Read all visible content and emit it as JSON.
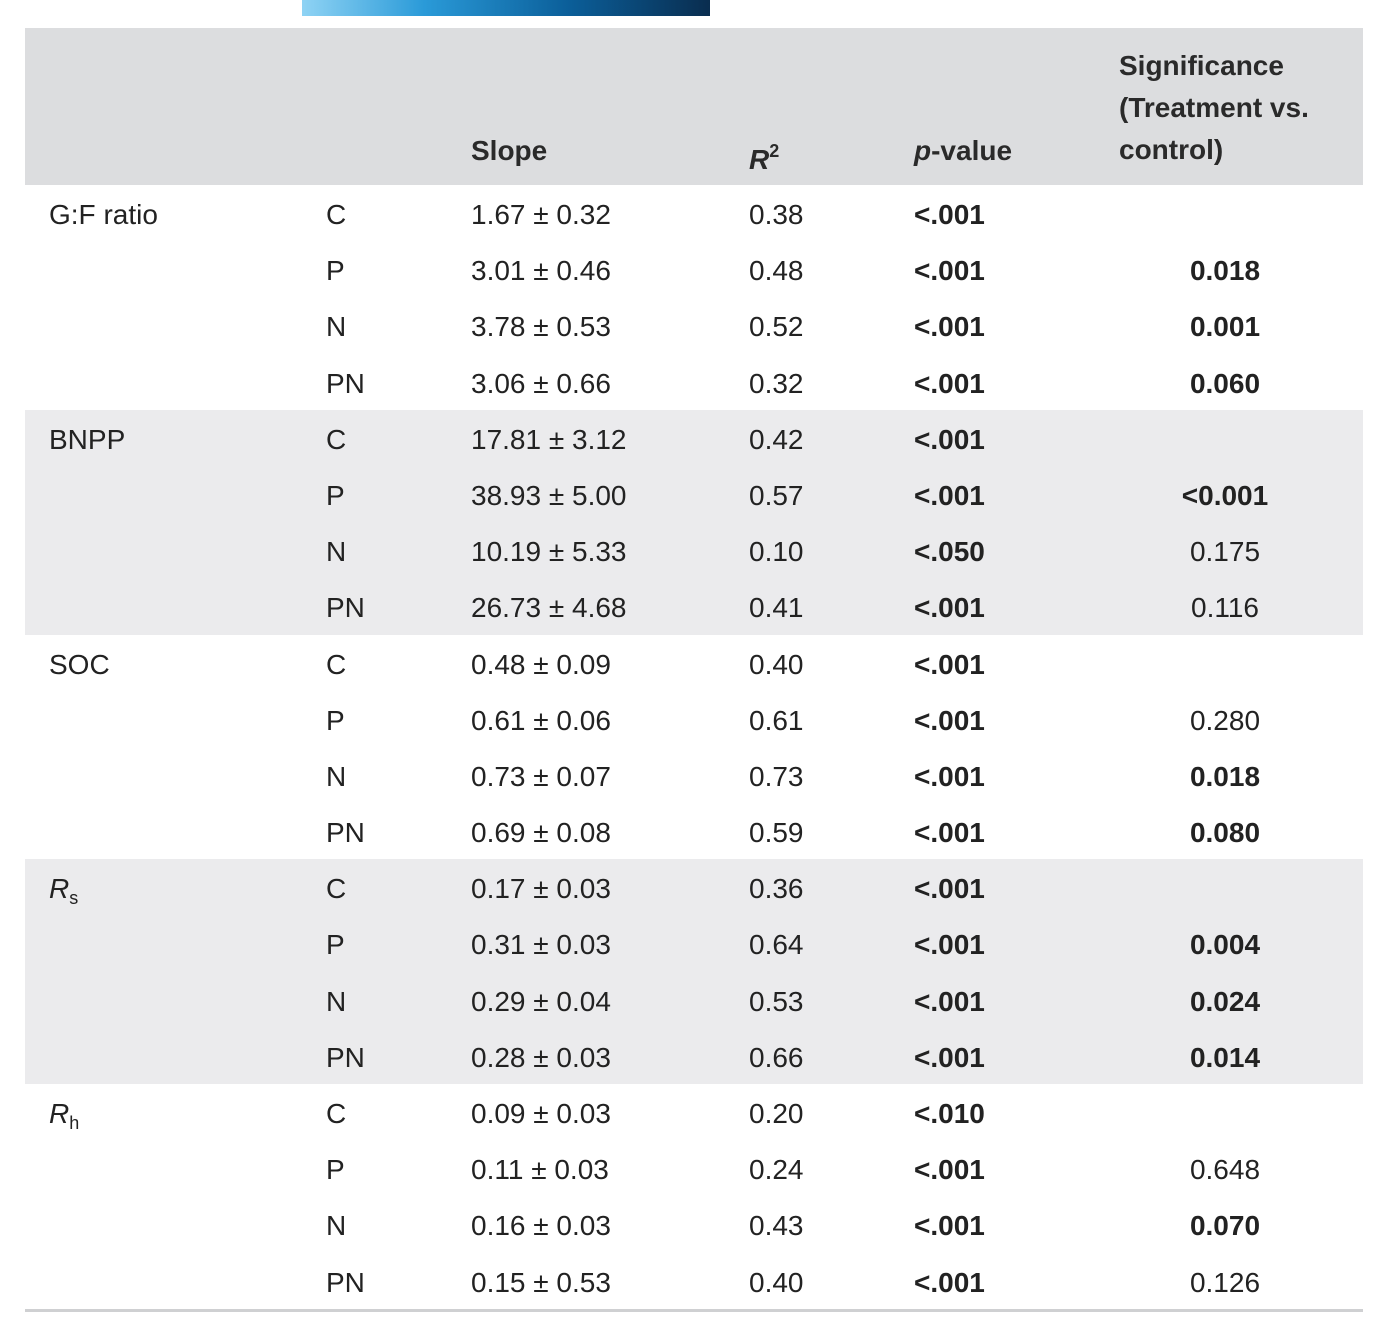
{
  "headers": {
    "slope": "Slope",
    "r2_base": "R",
    "r2_sup": "2",
    "p_ital": "p",
    "p_rest": "-value",
    "sig_line1": "Significance",
    "sig_line2": "(Treatment vs.",
    "sig_line3": "control)"
  },
  "groups": [
    {
      "variable": "G:F ratio",
      "var_sub": "",
      "shaded": false,
      "rows": [
        {
          "treatment": "C",
          "slope": "1.67 ± 0.32",
          "r2": "0.38",
          "p": "<.001",
          "sig": "",
          "sig_bold": false
        },
        {
          "treatment": "P",
          "slope": "3.01 ± 0.46",
          "r2": "0.48",
          "p": "<.001",
          "sig": "0.018",
          "sig_bold": true
        },
        {
          "treatment": "N",
          "slope": "3.78 ± 0.53",
          "r2": "0.52",
          "p": "<.001",
          "sig": "0.001",
          "sig_bold": true
        },
        {
          "treatment": "PN",
          "slope": "3.06 ± 0.66",
          "r2": "0.32",
          "p": "<.001",
          "sig": "0.060",
          "sig_bold": true
        }
      ]
    },
    {
      "variable": "BNPP",
      "var_sub": "",
      "shaded": true,
      "rows": [
        {
          "treatment": "C",
          "slope": "17.81 ± 3.12",
          "r2": "0.42",
          "p": "<.001",
          "sig": "",
          "sig_bold": false
        },
        {
          "treatment": "P",
          "slope": "38.93 ± 5.00",
          "r2": "0.57",
          "p": "<.001",
          "sig": "<0.001",
          "sig_bold": true
        },
        {
          "treatment": "N",
          "slope": "10.19 ± 5.33",
          "r2": "0.10",
          "p": "<.050",
          "sig": "0.175",
          "sig_bold": false
        },
        {
          "treatment": "PN",
          "slope": "26.73 ± 4.68",
          "r2": "0.41",
          "p": "<.001",
          "sig": "0.116",
          "sig_bold": false
        }
      ]
    },
    {
      "variable": "SOC",
      "var_sub": "",
      "shaded": false,
      "rows": [
        {
          "treatment": "C",
          "slope": "0.48 ± 0.09",
          "r2": "0.40",
          "p": "<.001",
          "sig": "",
          "sig_bold": false
        },
        {
          "treatment": "P",
          "slope": "0.61 ± 0.06",
          "r2": "0.61",
          "p": "<.001",
          "sig": "0.280",
          "sig_bold": false
        },
        {
          "treatment": "N",
          "slope": "0.73 ± 0.07",
          "r2": "0.73",
          "p": "<.001",
          "sig": "0.018",
          "sig_bold": true
        },
        {
          "treatment": "PN",
          "slope": "0.69 ± 0.08",
          "r2": "0.59",
          "p": "<.001",
          "sig": "0.080",
          "sig_bold": true
        }
      ]
    },
    {
      "variable": "R",
      "var_sub": "s",
      "shaded": true,
      "rows": [
        {
          "treatment": "C",
          "slope": "0.17 ± 0.03",
          "r2": "0.36",
          "p": "<.001",
          "sig": "",
          "sig_bold": false
        },
        {
          "treatment": "P",
          "slope": "0.31 ± 0.03",
          "r2": "0.64",
          "p": "<.001",
          "sig": "0.004",
          "sig_bold": true
        },
        {
          "treatment": "N",
          "slope": "0.29 ± 0.04",
          "r2": "0.53",
          "p": "<.001",
          "sig": "0.024",
          "sig_bold": true
        },
        {
          "treatment": "PN",
          "slope": "0.28 ± 0.03",
          "r2": "0.66",
          "p": "<.001",
          "sig": "0.014",
          "sig_bold": true
        }
      ]
    },
    {
      "variable": "R",
      "var_sub": "h",
      "shaded": false,
      "rows": [
        {
          "treatment": "C",
          "slope": "0.09 ± 0.03",
          "r2": "0.20",
          "p": "<.010",
          "sig": "",
          "sig_bold": false
        },
        {
          "treatment": "P",
          "slope": "0.11 ± 0.03",
          "r2": "0.24",
          "p": "<.001",
          "sig": "0.648",
          "sig_bold": false
        },
        {
          "treatment": "N",
          "slope": "0.16 ± 0.03",
          "r2": "0.43",
          "p": "<.001",
          "sig": "0.070",
          "sig_bold": true
        },
        {
          "treatment": "PN",
          "slope": "0.15 ± 0.53",
          "r2": "0.40",
          "p": "<.001",
          "sig": "0.126",
          "sig_bold": false
        }
      ]
    }
  ]
}
